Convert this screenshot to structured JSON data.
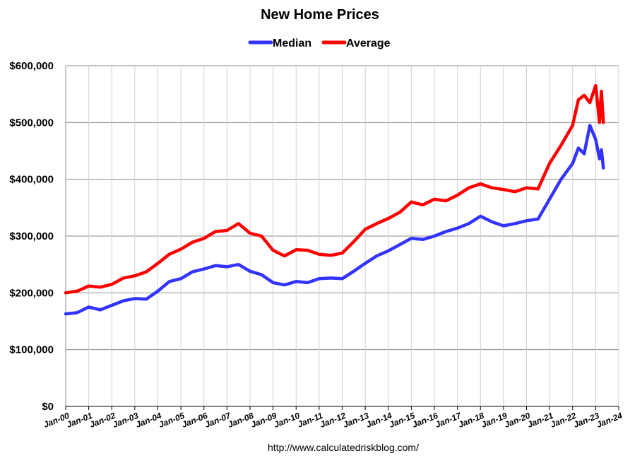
{
  "chart_data": {
    "type": "line",
    "title": "New Home Prices",
    "source": "http://www.calculatedriskblog.com/",
    "xlabel": "",
    "ylabel": "",
    "ylim": [
      0,
      600000
    ],
    "y_ticks": [
      "$0",
      "$100,000",
      "$200,000",
      "$300,000",
      "$400,000",
      "$500,000",
      "$600,000"
    ],
    "x_ticks": [
      "Jan-00",
      "Jan-01",
      "Jan-02",
      "Jan-03",
      "Jan-04",
      "Jan-05",
      "Jan-06",
      "Jan-07",
      "Jan-08",
      "Jan-09",
      "Jan-10",
      "Jan-11",
      "Jan-12",
      "Jan-13",
      "Jan-14",
      "Jan-15",
      "Jan-16",
      "Jan-17",
      "Jan-18",
      "Jan-19",
      "Jan-20",
      "Jan-21",
      "Jan-22",
      "Jan-23",
      "Jan-24"
    ],
    "xlim": [
      "2000-01",
      "2024-01"
    ],
    "grid": "vertical and horizontal",
    "legend": "top-center",
    "series": [
      {
        "name": "Median",
        "color": "#3333ff",
        "points": [
          [
            "2000-01",
            163000
          ],
          [
            "2000-07",
            165000
          ],
          [
            "2001-01",
            175000
          ],
          [
            "2001-07",
            170000
          ],
          [
            "2002-01",
            178000
          ],
          [
            "2002-07",
            186000
          ],
          [
            "2003-01",
            190000
          ],
          [
            "2003-07",
            189000
          ],
          [
            "2004-01",
            203000
          ],
          [
            "2004-07",
            220000
          ],
          [
            "2005-01",
            225000
          ],
          [
            "2005-07",
            237000
          ],
          [
            "2006-01",
            242000
          ],
          [
            "2006-07",
            248000
          ],
          [
            "2007-01",
            246000
          ],
          [
            "2007-07",
            250000
          ],
          [
            "2008-01",
            238000
          ],
          [
            "2008-07",
            232000
          ],
          [
            "2009-01",
            218000
          ],
          [
            "2009-07",
            214000
          ],
          [
            "2010-01",
            220000
          ],
          [
            "2010-07",
            218000
          ],
          [
            "2011-01",
            225000
          ],
          [
            "2011-07",
            226000
          ],
          [
            "2012-01",
            225000
          ],
          [
            "2012-07",
            238000
          ],
          [
            "2013-01",
            252000
          ],
          [
            "2013-07",
            265000
          ],
          [
            "2014-01",
            274000
          ],
          [
            "2014-07",
            285000
          ],
          [
            "2015-01",
            296000
          ],
          [
            "2015-07",
            294000
          ],
          [
            "2016-01",
            300000
          ],
          [
            "2016-07",
            308000
          ],
          [
            "2017-01",
            314000
          ],
          [
            "2017-07",
            322000
          ],
          [
            "2018-01",
            335000
          ],
          [
            "2018-07",
            325000
          ],
          [
            "2019-01",
            318000
          ],
          [
            "2019-07",
            322000
          ],
          [
            "2020-01",
            327000
          ],
          [
            "2020-07",
            330000
          ],
          [
            "2021-01",
            365000
          ],
          [
            "2021-07",
            400000
          ],
          [
            "2022-01",
            428000
          ],
          [
            "2022-04",
            455000
          ],
          [
            "2022-07",
            445000
          ],
          [
            "2022-10",
            495000
          ],
          [
            "2023-01",
            470000
          ],
          [
            "2023-03",
            436000
          ],
          [
            "2023-04",
            452000
          ],
          [
            "2023-05",
            420000
          ]
        ]
      },
      {
        "name": "Average",
        "color": "#ff0000",
        "points": [
          [
            "2000-01",
            200000
          ],
          [
            "2000-07",
            203000
          ],
          [
            "2001-01",
            212000
          ],
          [
            "2001-07",
            210000
          ],
          [
            "2002-01",
            215000
          ],
          [
            "2002-07",
            226000
          ],
          [
            "2003-01",
            230000
          ],
          [
            "2003-07",
            237000
          ],
          [
            "2004-01",
            252000
          ],
          [
            "2004-07",
            268000
          ],
          [
            "2005-01",
            277000
          ],
          [
            "2005-07",
            289000
          ],
          [
            "2006-01",
            296000
          ],
          [
            "2006-07",
            308000
          ],
          [
            "2007-01",
            310000
          ],
          [
            "2007-07",
            322000
          ],
          [
            "2008-01",
            305000
          ],
          [
            "2008-07",
            300000
          ],
          [
            "2009-01",
            275000
          ],
          [
            "2009-07",
            265000
          ],
          [
            "2010-01",
            276000
          ],
          [
            "2010-07",
            275000
          ],
          [
            "2011-01",
            268000
          ],
          [
            "2011-07",
            266000
          ],
          [
            "2012-01",
            270000
          ],
          [
            "2012-07",
            290000
          ],
          [
            "2013-01",
            312000
          ],
          [
            "2013-07",
            322000
          ],
          [
            "2014-01",
            331000
          ],
          [
            "2014-07",
            342000
          ],
          [
            "2015-01",
            360000
          ],
          [
            "2015-07",
            355000
          ],
          [
            "2016-01",
            365000
          ],
          [
            "2016-07",
            362000
          ],
          [
            "2017-01",
            372000
          ],
          [
            "2017-07",
            385000
          ],
          [
            "2018-01",
            392000
          ],
          [
            "2018-07",
            385000
          ],
          [
            "2019-01",
            382000
          ],
          [
            "2019-07",
            378000
          ],
          [
            "2020-01",
            385000
          ],
          [
            "2020-07",
            383000
          ],
          [
            "2021-01",
            428000
          ],
          [
            "2021-07",
            460000
          ],
          [
            "2022-01",
            495000
          ],
          [
            "2022-04",
            540000
          ],
          [
            "2022-07",
            548000
          ],
          [
            "2022-10",
            535000
          ],
          [
            "2023-01",
            565000
          ],
          [
            "2023-03",
            500000
          ],
          [
            "2023-04",
            555000
          ],
          [
            "2023-05",
            500000
          ]
        ]
      }
    ]
  }
}
